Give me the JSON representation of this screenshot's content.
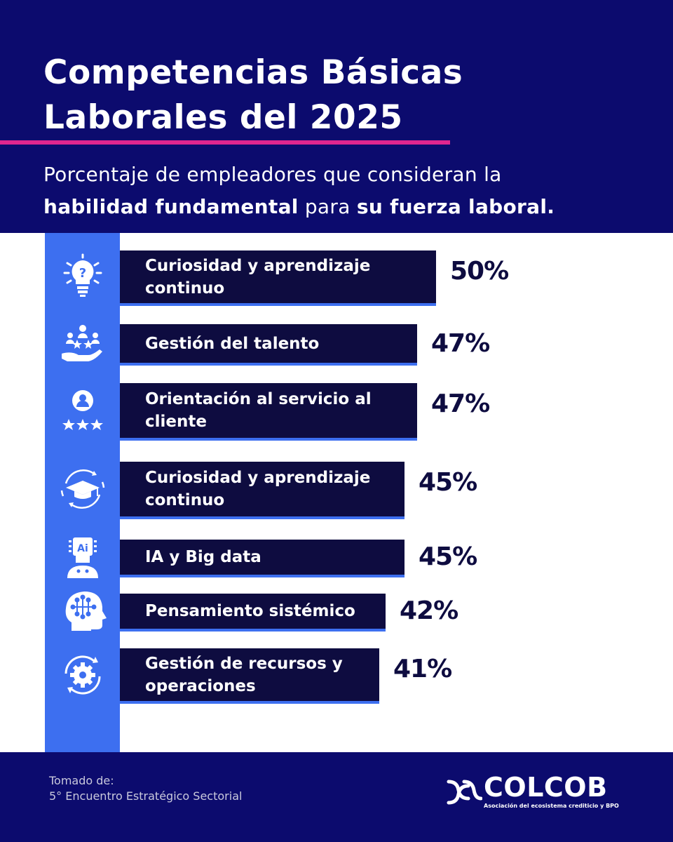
{
  "header": {
    "title_line1": "Competencias Básicas",
    "title_line2": "Laborales del 2025",
    "subtitle_part1": "Porcentaje de empleadores que  consideran la",
    "subtitle_bold1": "habilidad fundamental",
    "subtitle_part2": " para ",
    "subtitle_bold2": "su fuerza laboral."
  },
  "chart_data": {
    "type": "bar",
    "orientation": "horizontal",
    "categories": [
      "Curiosidad y aprendizaje continuo",
      "Gestión del talento",
      "Orientación al servicio al cliente",
      "Curiosidad y aprendizaje continuo",
      "IA y Big data",
      "Pensamiento  sistémico",
      "Gestión de recursos y operaciones"
    ],
    "values": [
      50,
      47,
      47,
      45,
      45,
      42,
      41
    ],
    "value_labels": [
      "50%",
      "47%",
      "47%",
      "45%",
      "45%",
      "42%",
      "41%"
    ],
    "icons": [
      "lightbulb-question-icon",
      "talent-hand-stars-icon",
      "customer-service-rating-icon",
      "graduation-cycle-icon",
      "ai-head-icon",
      "systems-thinking-head-icon",
      "gear-cycle-icon"
    ],
    "bar_color": "#0e0c40",
    "accent_color": "#3d6ff0"
  },
  "footer": {
    "source_line1": "Tomado de:",
    "source_line2": "5° Encuentro Estratégico Sectorial",
    "logo_text": "COLCOB",
    "logo_tagline": "Asociación del ecosistema crediticio y BPO"
  },
  "colors": {
    "navy": "#0c0b6e",
    "bar": "#0e0c40",
    "accent_blue": "#3d6ff0",
    "pink": "#e0268f"
  }
}
